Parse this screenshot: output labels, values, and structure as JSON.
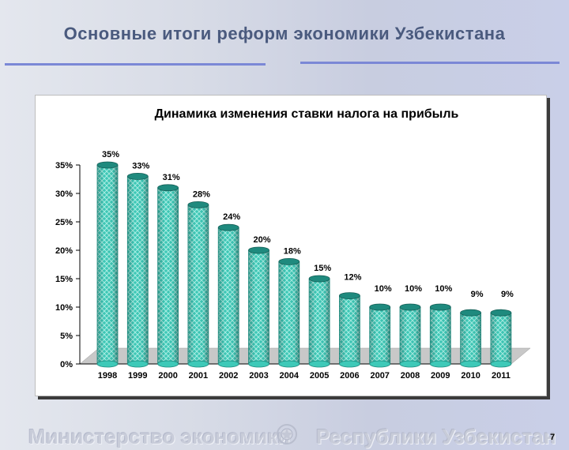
{
  "slide": {
    "title": "Основные итоги реформ экономики Узбекистана",
    "footer_left": "Министерство экономики",
    "footer_right": "Республики Узбекистан",
    "page_number": "7",
    "emblem_icon": "state-emblem-icon"
  },
  "colors": {
    "bar_fill": "#3ec9b8",
    "bar_pattern": "#a8efe4",
    "bar_top": "#1f8a7e",
    "floor": "#c8c8c8",
    "title_rule": "#7b88d6"
  },
  "chart_data": {
    "type": "bar",
    "title": "Динамика изменения ставки налога на прибыль",
    "categories": [
      "1998",
      "1999",
      "2000",
      "2001",
      "2002",
      "2003",
      "2004",
      "2005",
      "2006",
      "2007",
      "2008",
      "2009",
      "2010",
      "2011"
    ],
    "values": [
      35,
      33,
      31,
      28,
      24,
      20,
      18,
      15,
      12,
      10,
      10,
      10,
      9,
      9
    ],
    "data_labels": [
      "35%",
      "33%",
      "31%",
      "28%",
      "24%",
      "20%",
      "18%",
      "15%",
      "12%",
      "10%",
      "10%",
      "10%",
      "9%",
      "9%"
    ],
    "y_ticks": [
      0,
      5,
      10,
      15,
      20,
      25,
      30,
      35
    ],
    "y_tick_labels": [
      "0%",
      "5%",
      "10%",
      "15%",
      "20%",
      "25%",
      "30%",
      "35%"
    ],
    "ylim": [
      0,
      35
    ],
    "xlabel": "",
    "ylabel": "",
    "grid": false,
    "legend": "none"
  }
}
